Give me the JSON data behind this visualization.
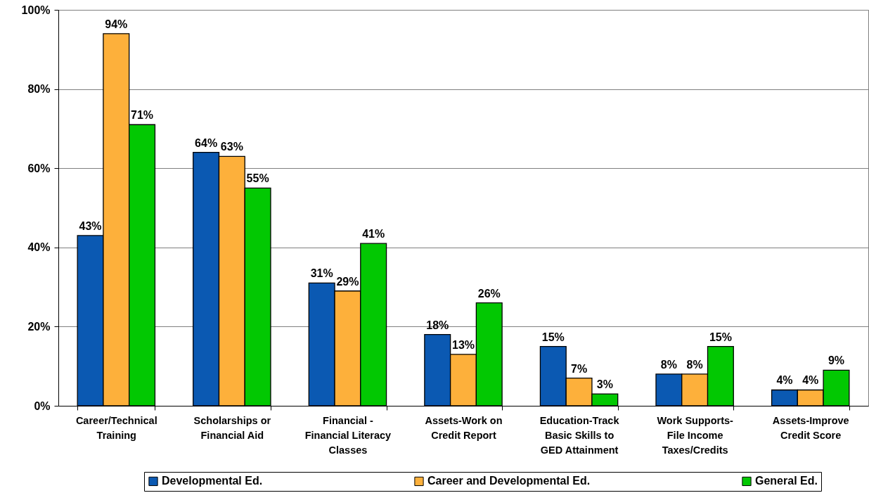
{
  "chart_data": {
    "type": "bar",
    "categories": [
      "Career/Technical\nTraining",
      "Scholarships or\nFinancial Aid",
      "Financial -\nFinancial Literacy\nClasses",
      "Assets-Work on\nCredit Report",
      "Education-Track\nBasic Skills to\nGED Attainment",
      "Work Supports-\nFile Income\nTaxes/Credits",
      "Assets-Improve\nCredit Score"
    ],
    "series": [
      {
        "name": "Developmental Ed.",
        "color": "#0b59b2",
        "values": [
          43,
          64,
          31,
          18,
          15,
          8,
          4
        ],
        "value_labels": [
          "43%",
          "64%",
          "31%",
          "18%",
          "15%",
          "8%",
          "4%"
        ]
      },
      {
        "name": "Career and Developmental Ed.",
        "color": "#fdb03b",
        "values": [
          94,
          63,
          29,
          13,
          7,
          8,
          4
        ],
        "value_labels": [
          "94%",
          "63%",
          "29%",
          "13%",
          "7%",
          "8%",
          "4%"
        ]
      },
      {
        "name": "General Ed.",
        "color": "#02c802",
        "values": [
          71,
          55,
          41,
          26,
          3,
          15,
          9
        ],
        "value_labels": [
          "71%",
          "55%",
          "41%",
          "26%",
          "3%",
          "15%",
          "9%"
        ]
      }
    ],
    "ylim": [
      0,
      100
    ],
    "yticks": [
      {
        "value": 0,
        "label": "0%"
      },
      {
        "value": 20,
        "label": "20%"
      },
      {
        "value": 40,
        "label": "40%"
      },
      {
        "value": 60,
        "label": "60%"
      },
      {
        "value": 80,
        "label": "80%"
      },
      {
        "value": 100,
        "label": "100%"
      }
    ],
    "grid": "y",
    "legend": "bottom"
  }
}
